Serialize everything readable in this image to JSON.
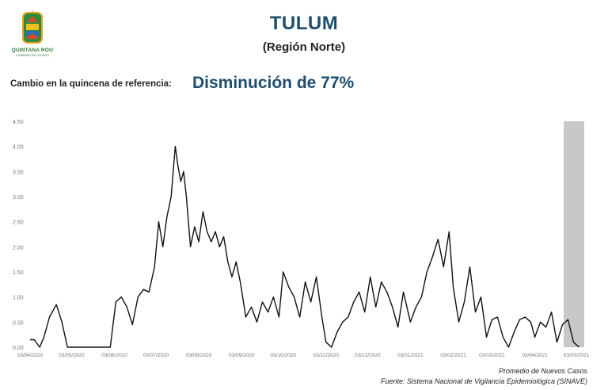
{
  "header": {
    "logo_text": "QUINTANA ROO",
    "logo_subtext": "GOBIERNO DEL ESTADO",
    "title": "TULUM",
    "subtitle": "(Región Norte)",
    "change_label": "Cambio en la quincena de referencia:",
    "change_value": "Disminución de 77%"
  },
  "footer": {
    "measure": "Promedio de Nuevos Casos",
    "source": "Fuente: Sistema Nacional de Vigilancia Epidemiológica (SINAVE)"
  },
  "colors": {
    "title": "#1d4e6e",
    "line": "#111111",
    "highlight": "#c8c8c8",
    "axis_text": "#777777"
  },
  "chart_data": {
    "type": "line",
    "title": "",
    "xlabel": "",
    "ylabel": "",
    "ylim": [
      0,
      4.5
    ],
    "grid": false,
    "highlight_period": "last fortnight (shaded)",
    "y_ticks": [
      "0.00",
      "0.50",
      "1.00",
      "1.50",
      "2.00",
      "2.50",
      "3.00",
      "3.50",
      "4.00",
      "4.50"
    ],
    "x_ticks": [
      "03/04/2020",
      "03/05/2020",
      "03/06/2020",
      "03/07/2020",
      "03/08/2020",
      "03/09/2020",
      "03/10/2020",
      "03/11/2020",
      "03/12/2020",
      "03/01/2021",
      "03/02/2021",
      "03/03/2021",
      "03/04/2021",
      "03/05/2021"
    ],
    "series": [
      {
        "x": [
          "03/04/2020",
          "06/04/2020",
          "10/04/2020",
          "13/04/2020",
          "17/04/2020",
          "22/04/2020",
          "26/04/2020",
          "30/04/2020",
          "03/05/2020",
          "10/05/2020",
          "17/05/2020",
          "24/05/2020",
          "31/05/2020",
          "04/06/2020",
          "08/06/2020",
          "12/06/2020",
          "16/06/2020",
          "20/06/2020",
          "24/06/2020",
          "28/06/2020",
          "02/07/2020",
          "05/07/2020",
          "08/07/2020",
          "11/07/2020",
          "14/07/2020",
          "17/07/2020",
          "19/07/2020",
          "21/07/2020",
          "23/07/2020",
          "25/07/2020",
          "28/07/2020",
          "31/07/2020",
          "03/08/2020",
          "06/08/2020",
          "09/08/2020",
          "12/08/2020",
          "15/08/2020",
          "18/08/2020",
          "21/08/2020",
          "24/08/2020",
          "27/08/2020",
          "30/08/2020",
          "02/09/2020",
          "06/09/2020",
          "10/09/2020",
          "14/09/2020",
          "18/09/2020",
          "22/09/2020",
          "26/09/2020",
          "30/09/2020",
          "03/10/2020",
          "07/10/2020",
          "11/10/2020",
          "15/10/2020",
          "19/10/2020",
          "23/10/2020",
          "27/10/2020",
          "31/10/2020",
          "03/11/2020",
          "07/11/2020",
          "11/11/2020",
          "15/11/2020",
          "19/11/2020",
          "23/11/2020",
          "27/11/2020",
          "01/12/2020",
          "05/12/2020",
          "09/12/2020",
          "13/12/2020",
          "17/12/2020",
          "21/12/2020",
          "25/12/2020",
          "29/12/2020",
          "03/01/2021",
          "07/01/2021",
          "11/01/2021",
          "15/01/2021",
          "19/01/2021",
          "23/01/2021",
          "27/01/2021",
          "31/01/2021",
          "03/02/2021",
          "07/02/2021",
          "11/02/2021",
          "15/02/2021",
          "19/02/2021",
          "23/02/2021",
          "27/02/2021",
          "03/03/2021",
          "07/03/2021",
          "11/03/2021",
          "15/03/2021",
          "19/03/2021",
          "23/03/2021",
          "27/03/2021",
          "31/03/2021",
          "03/04/2021",
          "07/04/2021",
          "11/04/2021",
          "15/04/2021",
          "19/04/2021",
          "23/04/2021",
          "27/04/2021",
          "01/05/2021",
          "05/05/2021"
        ],
        "y": [
          0.15,
          0.15,
          0.0,
          0.2,
          0.6,
          0.85,
          0.5,
          0.0,
          0.0,
          0.0,
          0.0,
          0.0,
          0.0,
          0.9,
          1.0,
          0.8,
          0.45,
          1.0,
          1.15,
          1.1,
          1.6,
          2.5,
          2.0,
          2.6,
          3.0,
          4.0,
          3.6,
          3.3,
          3.5,
          3.0,
          2.0,
          2.4,
          2.1,
          2.7,
          2.3,
          2.1,
          2.3,
          2.0,
          2.2,
          1.7,
          1.4,
          1.7,
          1.3,
          0.6,
          0.8,
          0.5,
          0.9,
          0.7,
          1.0,
          0.6,
          1.5,
          1.2,
          1.0,
          0.6,
          1.3,
          0.9,
          1.4,
          0.6,
          0.1,
          0.0,
          0.3,
          0.5,
          0.6,
          0.9,
          1.1,
          0.7,
          1.4,
          0.8,
          1.3,
          1.1,
          0.8,
          0.4,
          1.1,
          0.5,
          0.8,
          1.0,
          1.5,
          1.8,
          2.15,
          1.6,
          2.3,
          1.2,
          0.5,
          0.9,
          1.6,
          0.7,
          1.0,
          0.2,
          0.55,
          0.6,
          0.2,
          0.0,
          0.3,
          0.55,
          0.6,
          0.5,
          0.2,
          0.5,
          0.4,
          0.7,
          0.1,
          0.45,
          0.55,
          0.1,
          0.0
        ]
      }
    ]
  }
}
